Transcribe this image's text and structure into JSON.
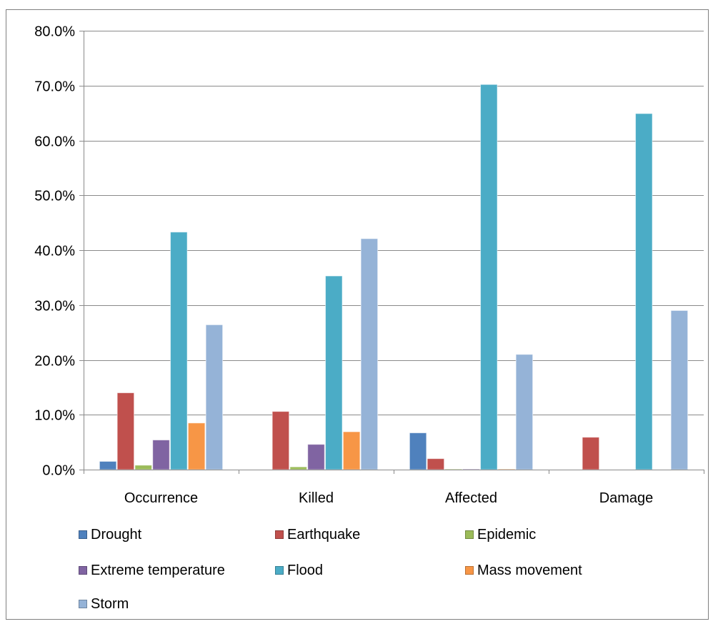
{
  "chart_data": {
    "type": "bar",
    "title": "",
    "xlabel": "",
    "ylabel": "",
    "ylim": [
      0,
      80
    ],
    "y_tick_labels": [
      "0.0%",
      "10.0%",
      "20.0%",
      "30.0%",
      "40.0%",
      "50.0%",
      "60.0%",
      "70.0%",
      "80.0%"
    ],
    "y_ticks": [
      0,
      10,
      20,
      30,
      40,
      50,
      60,
      70,
      80
    ],
    "grid": true,
    "legend_position": "bottom",
    "categories": [
      "Occurrence",
      "Killed",
      "Affected",
      "Damage"
    ],
    "series": [
      {
        "name": "Drought",
        "color": "#4F81BD",
        "values": [
          1.5,
          0.0,
          6.7,
          0.0
        ]
      },
      {
        "name": "Earthquake",
        "color": "#C0504D",
        "values": [
          14.0,
          10.6,
          2.0,
          5.9
        ]
      },
      {
        "name": "Epidemic",
        "color": "#9BBB59",
        "values": [
          0.8,
          0.5,
          0.1,
          0.0
        ]
      },
      {
        "name": "Extreme temperature",
        "color": "#8064A2",
        "values": [
          5.4,
          4.6,
          0.1,
          0.0
        ]
      },
      {
        "name": "Flood",
        "color": "#4BACC6",
        "values": [
          43.3,
          35.3,
          70.2,
          64.9
        ]
      },
      {
        "name": "Mass movement",
        "color": "#F79646",
        "values": [
          8.5,
          6.9,
          0.1,
          0.0
        ]
      },
      {
        "name": "Storm",
        "color": "#95B3D7",
        "values": [
          26.4,
          42.1,
          21.0,
          29.0
        ]
      }
    ]
  }
}
